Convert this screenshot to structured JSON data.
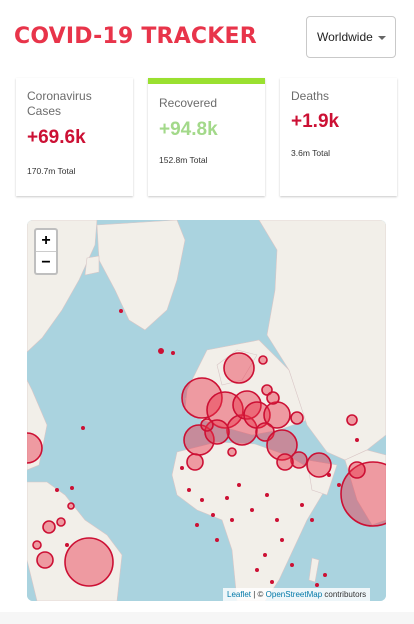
{
  "header": {
    "title": "COVID-19 TRACKER",
    "country_select": {
      "value": "Worldwide"
    }
  },
  "stats": {
    "cases": {
      "label": "Coronavirus Cases",
      "today": "+69.6k",
      "total": "170.7m Total"
    },
    "recovered": {
      "label": "Recovered",
      "today": "+94.8k",
      "total": "152.8m Total"
    },
    "deaths": {
      "label": "Deaths",
      "today": "+1.9k",
      "total": "3.6m Total"
    }
  },
  "map": {
    "zoom_in": "+",
    "zoom_out": "−",
    "attribution": {
      "leaflet": "Leaflet",
      "sep": " | © ",
      "osm": "OpenStreetMap",
      "contributors": " contributors"
    }
  },
  "colors": {
    "title": "#e8344a",
    "cases": "#cc1034",
    "recovered": "#a3d98a",
    "recovered_bar": "#9ae030",
    "deaths": "#cc1034",
    "ocean": "#aad3df",
    "land": "#f2efe9"
  }
}
